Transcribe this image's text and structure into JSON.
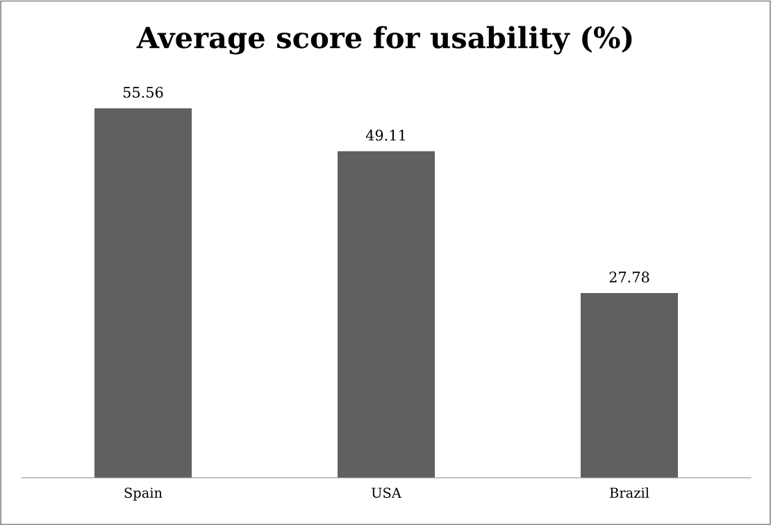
{
  "chart_data": {
    "type": "bar",
    "title": "Average score for usability (%)",
    "categories": [
      "Spain",
      "USA",
      "Brazil"
    ],
    "values": [
      55.56,
      49.11,
      27.78
    ],
    "color": "#606060",
    "data_labels": true,
    "grid": false,
    "legend": false,
    "tick_labels": "x"
  }
}
